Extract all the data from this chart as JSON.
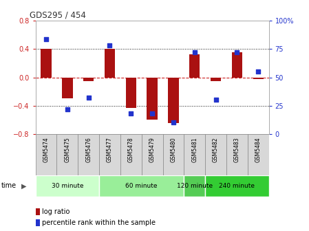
{
  "title": "GDS295 / 454",
  "samples": [
    "GSM5474",
    "GSM5475",
    "GSM5476",
    "GSM5477",
    "GSM5478",
    "GSM5479",
    "GSM5480",
    "GSM5481",
    "GSM5482",
    "GSM5483",
    "GSM5484"
  ],
  "log_ratio": [
    0.4,
    -0.3,
    -0.05,
    0.4,
    -0.43,
    -0.6,
    -0.65,
    0.33,
    -0.05,
    0.36,
    -0.02
  ],
  "percentile": [
    84,
    22,
    32,
    78,
    18,
    18,
    10,
    72,
    30,
    72,
    55
  ],
  "ylim_left": [
    -0.8,
    0.8
  ],
  "yticks_left": [
    -0.8,
    -0.4,
    0.0,
    0.4,
    0.8
  ],
  "yticks_right": [
    0,
    25,
    50,
    75,
    100
  ],
  "ytick_labels_right": [
    "0",
    "25",
    "50",
    "75",
    "100%"
  ],
  "bar_color": "#AA1111",
  "dot_color": "#2233CC",
  "zero_line_color": "#CC2222",
  "dotted_line_color": "#111111",
  "groups": [
    {
      "label": "30 minute",
      "start": 0,
      "end": 2,
      "color": "#ccffcc"
    },
    {
      "label": "60 minute",
      "start": 3,
      "end": 6,
      "color": "#99ee99"
    },
    {
      "label": "120 minute",
      "start": 7,
      "end": 7,
      "color": "#55cc55"
    },
    {
      "label": "240 minute",
      "start": 8,
      "end": 10,
      "color": "#33cc33"
    }
  ],
  "legend_bar_label": "log ratio",
  "legend_dot_label": "percentile rank within the sample",
  "time_label": "time",
  "bg_color": "#ffffff",
  "plot_bg": "#ffffff",
  "tick_label_color_left": "#CC2222",
  "tick_label_color_right": "#2233CC",
  "sample_box_color": "#d8d8d8",
  "sample_box_edge": "#888888"
}
